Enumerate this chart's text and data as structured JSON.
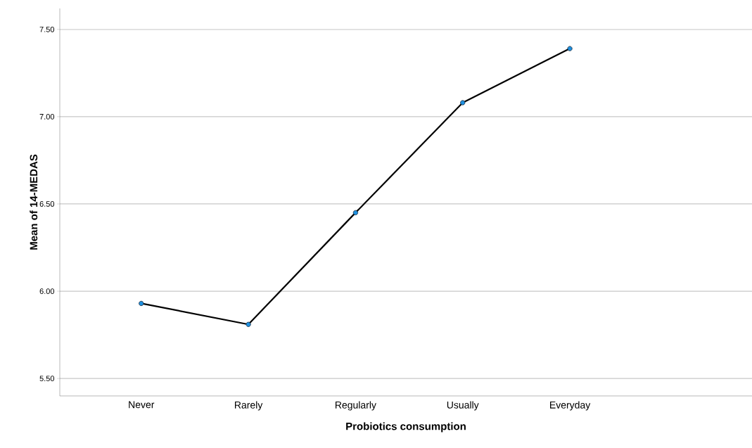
{
  "chart_data": {
    "type": "line",
    "xlabel": "Probiotics consumption",
    "ylabel": "Mean of 14-MEDAS",
    "categories": [
      "Never",
      "Rarely",
      "Regularly",
      "Usually",
      "Everyday"
    ],
    "series": [
      {
        "color": "#000000",
        "values": [
          5.93,
          5.81,
          6.45,
          7.08,
          7.39
        ]
      }
    ],
    "ylim": [
      5.4,
      7.62
    ],
    "yticks": [
      {
        "value": 5.5,
        "label": "5.50"
      },
      {
        "value": 6.0,
        "label": "6.00"
      },
      {
        "value": 6.5,
        "label": "6.50"
      },
      {
        "value": 7.0,
        "label": "7.00"
      },
      {
        "value": 7.5,
        "label": "7.50"
      }
    ],
    "grid": "y",
    "marker": "circle",
    "line_style": "solid"
  }
}
